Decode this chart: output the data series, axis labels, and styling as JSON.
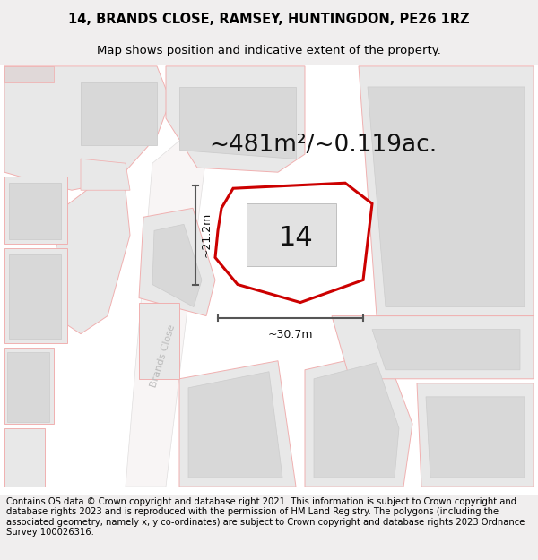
{
  "title_line1": "14, BRANDS CLOSE, RAMSEY, HUNTINGDON, PE26 1RZ",
  "title_line2": "Map shows position and indicative extent of the property.",
  "area_label": "~481m²/~0.119ac.",
  "plot_number": "14",
  "dim_height": "~21.2m",
  "dim_width": "~30.7m",
  "road_label": "Brands Close",
  "footer_text": "Contains OS data © Crown copyright and database right 2021. This information is subject to Crown copyright and database rights 2023 and is reproduced with the permission of HM Land Registry. The polygons (including the associated geometry, namely x, y co-ordinates) are subject to Crown copyright and database rights 2023 Ordnance Survey 100026316.",
  "bg_color": "#f5f0f0",
  "map_bg": "#ffffff",
  "plot_fill": "#ffffff",
  "plot_edge": "#cc0000",
  "neighbor_fill": "#e8e8e8",
  "neighbor_edge": "#f0b0b0",
  "building_fill": "#d8d8d8",
  "dim_color": "#555555",
  "title_fontsize": 10.5,
  "subtitle_fontsize": 9.5,
  "area_fontsize": 19,
  "number_fontsize": 22,
  "footer_fontsize": 7.2,
  "road_label_color": "#bbbbbb",
  "road_label_fontsize": 8
}
